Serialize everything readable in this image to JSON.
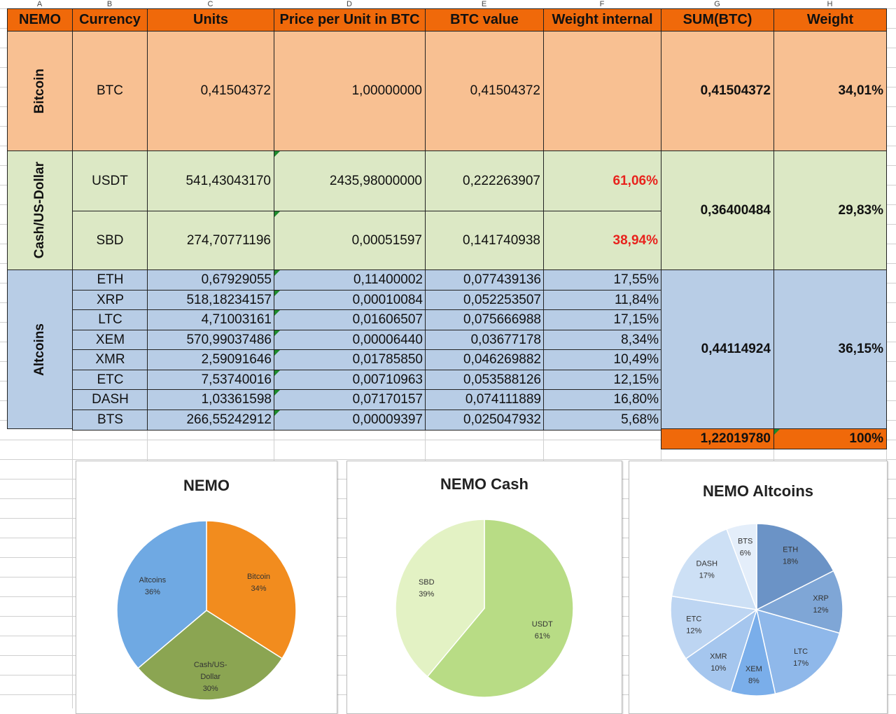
{
  "column_letters": [
    "A",
    "B",
    "C",
    "D",
    "E",
    "F",
    "G",
    "H"
  ],
  "headers": {
    "nemo": "NEMO",
    "currency": "Currency",
    "units": "Units",
    "price": "Price per Unit in BTC",
    "btc_value": "BTC value",
    "weight_internal": "Weight internal",
    "sum_btc": "SUM(BTC)",
    "weight": "Weight"
  },
  "groups": {
    "bitcoin": {
      "label": "Bitcoin",
      "sum": "0,41504372",
      "weight": "34,01%"
    },
    "cash": {
      "label": "Cash/US-Dollar",
      "sum": "0,36400484",
      "weight": "29,83%"
    },
    "altcoins": {
      "label": "Altcoins",
      "sum": "0,44114924",
      "weight": "36,15%"
    }
  },
  "rows": [
    {
      "currency": "BTC",
      "units": "0,41504372",
      "price": "1,00000000",
      "btc_value": "0,41504372",
      "weight_internal": ""
    },
    {
      "currency": "USDT",
      "units": "541,43043170",
      "price": "2435,98000000",
      "btc_value": "0,222263907",
      "weight_internal": "61,06%"
    },
    {
      "currency": "SBD",
      "units": "274,70771196",
      "price": "0,00051597",
      "btc_value": "0,141740938",
      "weight_internal": "38,94%"
    },
    {
      "currency": "ETH",
      "units": "0,67929055",
      "price": "0,11400002",
      "btc_value": "0,077439136",
      "weight_internal": "17,55%"
    },
    {
      "currency": "XRP",
      "units": "518,18234157",
      "price": "0,00010084",
      "btc_value": "0,052253507",
      "weight_internal": "11,84%"
    },
    {
      "currency": "LTC",
      "units": "4,71003161",
      "price": "0,01606507",
      "btc_value": "0,075666988",
      "weight_internal": "17,15%"
    },
    {
      "currency": "XEM",
      "units": "570,99037486",
      "price": "0,00006440",
      "btc_value": "0,03677178",
      "weight_internal": "8,34%"
    },
    {
      "currency": "XMR",
      "units": "2,59091646",
      "price": "0,01785850",
      "btc_value": "0,046269882",
      "weight_internal": "10,49%"
    },
    {
      "currency": "ETC",
      "units": "7,53740016",
      "price": "0,00710963",
      "btc_value": "0,053588126",
      "weight_internal": "12,15%"
    },
    {
      "currency": "DASH",
      "units": "1,03361598",
      "price": "0,07170157",
      "btc_value": "0,074111889",
      "weight_internal": "16,80%"
    },
    {
      "currency": "BTS",
      "units": "266,55242912",
      "price": "0,00009397",
      "btc_value": "0,025047932",
      "weight_internal": "5,68%"
    }
  ],
  "totals": {
    "sum": "1,22019780",
    "weight": "100%"
  },
  "colors": {
    "header": "#f0690a",
    "bitcoin": "#f8c092",
    "cash": "#dce8c5",
    "altcoins": "#b8cde6",
    "negative_red": "#e8231d"
  },
  "chart_data": [
    {
      "type": "pie",
      "title": "NEMO",
      "slices": [
        {
          "label": "Bitcoin",
          "pct": "34%",
          "value": 34.01,
          "color": "#f28c1e"
        },
        {
          "label": "Cash/US-Dollar",
          "pct": "30%",
          "value": 29.83,
          "color": "#8ba552"
        },
        {
          "label": "Altcoins",
          "pct": "36%",
          "value": 36.15,
          "color": "#6fa9e3"
        }
      ]
    },
    {
      "type": "pie",
      "title": "NEMO Cash",
      "slices": [
        {
          "label": "USDT",
          "pct": "61%",
          "value": 61.06,
          "color": "#b8dc85"
        },
        {
          "label": "SBD",
          "pct": "39%",
          "value": 38.94,
          "color": "#e3f2c4"
        }
      ]
    },
    {
      "type": "pie",
      "title": "NEMO Altcoins",
      "slices": [
        {
          "label": "ETH",
          "pct": "18%",
          "value": 17.55,
          "color": "#6b93c6"
        },
        {
          "label": "XRP",
          "pct": "12%",
          "value": 11.84,
          "color": "#7fa6d6"
        },
        {
          "label": "LTC",
          "pct": "17%",
          "value": 17.15,
          "color": "#8fb8ea"
        },
        {
          "label": "XEM",
          "pct": "8%",
          "value": 8.34,
          "color": "#7aaeea"
        },
        {
          "label": "XMR",
          "pct": "10%",
          "value": 10.49,
          "color": "#a5c6ee"
        },
        {
          "label": "ETC",
          "pct": "12%",
          "value": 12.15,
          "color": "#bdd5f2"
        },
        {
          "label": "DASH",
          "pct": "17%",
          "value": 16.8,
          "color": "#cde0f5"
        },
        {
          "label": "BTS",
          "pct": "6%",
          "value": 5.68,
          "color": "#e4eefa"
        }
      ]
    }
  ]
}
